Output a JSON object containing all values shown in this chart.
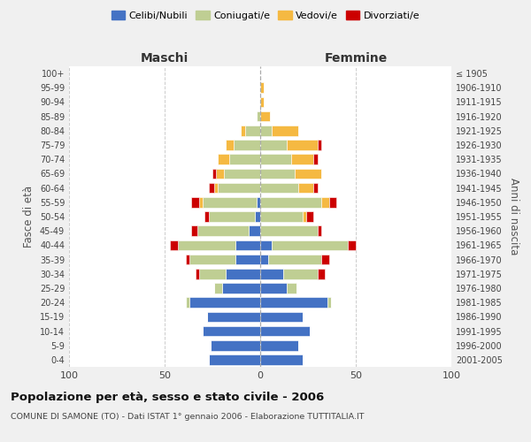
{
  "age_groups": [
    "0-4",
    "5-9",
    "10-14",
    "15-19",
    "20-24",
    "25-29",
    "30-34",
    "35-39",
    "40-44",
    "45-49",
    "50-54",
    "55-59",
    "60-64",
    "65-69",
    "70-74",
    "75-79",
    "80-84",
    "85-89",
    "90-94",
    "95-99",
    "100+"
  ],
  "birth_years": [
    "2001-2005",
    "1996-2000",
    "1991-1995",
    "1986-1990",
    "1981-1985",
    "1976-1980",
    "1971-1975",
    "1966-1970",
    "1961-1965",
    "1956-1960",
    "1951-1955",
    "1946-1950",
    "1941-1945",
    "1936-1940",
    "1931-1935",
    "1926-1930",
    "1921-1925",
    "1916-1920",
    "1911-1915",
    "1906-1910",
    "≤ 1905"
  ],
  "males_celibi": [
    27,
    26,
    30,
    28,
    37,
    20,
    18,
    13,
    13,
    6,
    3,
    2,
    0,
    0,
    0,
    0,
    0,
    0,
    0,
    0,
    0
  ],
  "males_coniugati": [
    0,
    0,
    0,
    0,
    2,
    4,
    14,
    24,
    30,
    27,
    24,
    28,
    22,
    19,
    16,
    14,
    8,
    2,
    0,
    0,
    0
  ],
  "males_vedovi": [
    0,
    0,
    0,
    0,
    0,
    0,
    0,
    0,
    0,
    0,
    0,
    2,
    2,
    4,
    6,
    4,
    2,
    0,
    0,
    0,
    0
  ],
  "males_divorziati": [
    0,
    0,
    0,
    0,
    0,
    0,
    2,
    2,
    4,
    3,
    2,
    4,
    3,
    2,
    0,
    0,
    0,
    0,
    0,
    0,
    0
  ],
  "females_nubili": [
    22,
    20,
    26,
    22,
    35,
    14,
    12,
    4,
    6,
    0,
    0,
    0,
    0,
    0,
    0,
    0,
    0,
    0,
    0,
    0,
    0
  ],
  "females_coniugate": [
    0,
    0,
    0,
    0,
    2,
    5,
    18,
    28,
    40,
    30,
    22,
    32,
    20,
    18,
    16,
    14,
    6,
    0,
    0,
    0,
    0
  ],
  "females_vedove": [
    0,
    0,
    0,
    0,
    0,
    0,
    0,
    0,
    0,
    0,
    2,
    4,
    8,
    14,
    12,
    16,
    14,
    5,
    2,
    2,
    0
  ],
  "females_divorziate": [
    0,
    0,
    0,
    0,
    0,
    0,
    4,
    4,
    4,
    2,
    4,
    4,
    2,
    0,
    2,
    2,
    0,
    0,
    0,
    0,
    0
  ],
  "color_celibi": "#4472C4",
  "color_coniugati": "#BFCE93",
  "color_vedovi": "#F5B942",
  "color_divorziati": "#CC0000",
  "xlim": 100,
  "title": "Popolazione per età, sesso e stato civile - 2006",
  "subtitle": "COMUNE DI SAMONE (TO) - Dati ISTAT 1° gennaio 2006 - Elaborazione TUTTITALIA.IT",
  "ylabel_left": "Fasce di età",
  "ylabel_right": "Anni di nascita",
  "label_maschi": "Maschi",
  "label_femmine": "Femmine",
  "legend_celibi": "Celibi/Nubili",
  "legend_coniugati": "Coniugati/e",
  "legend_vedovi": "Vedovi/e",
  "legend_divorziati": "Divorziati/e",
  "bg_color": "#f0f0f0",
  "plot_bg": "#ffffff"
}
